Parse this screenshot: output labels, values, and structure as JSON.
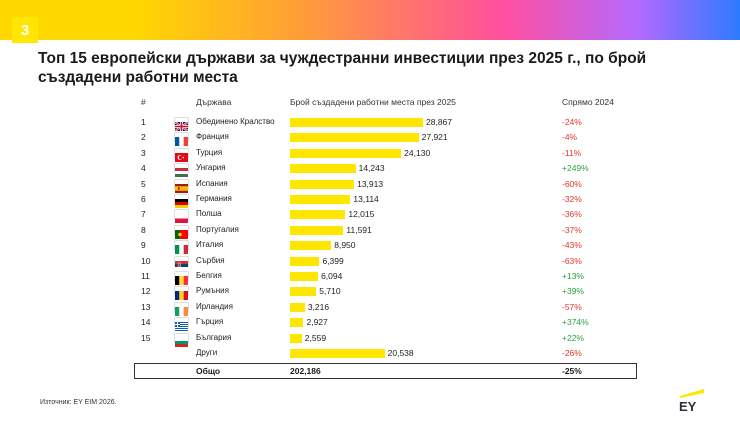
{
  "slide_number": "3",
  "title": "Топ 15 европейски държави за чуждестранни инвестиции през 2025 г., по брой създадени работни места",
  "source": "Източник: EY EIM 2026.",
  "logo_text": "EY",
  "chart_data": {
    "type": "bar",
    "orientation": "horizontal",
    "title": "Топ 15 европейски държави за чуждестранни инвестиции през 2025 г., по брой създадени работни места",
    "columns": {
      "rank": "#",
      "country": "Държава",
      "value": "Брой създадени работни места през 2025",
      "change": "Спрямо 2024"
    },
    "rows": [
      {
        "rank": "1",
        "country": "Обединено Кралство",
        "value": 28867,
        "value_label": "28,867",
        "change": "-24%",
        "flag": "gb"
      },
      {
        "rank": "2",
        "country": "Франция",
        "value": 27921,
        "value_label": "27,921",
        "change": "-4%",
        "flag": "fr"
      },
      {
        "rank": "3",
        "country": "Турция",
        "value": 24130,
        "value_label": "24,130",
        "change": "-11%",
        "flag": "tr"
      },
      {
        "rank": "4",
        "country": "Унгария",
        "value": 14243,
        "value_label": "14,243",
        "change": "+249%",
        "flag": "hu"
      },
      {
        "rank": "5",
        "country": "Испания",
        "value": 13913,
        "value_label": "13,913",
        "change": "-60%",
        "flag": "es"
      },
      {
        "rank": "6",
        "country": "Германия",
        "value": 13114,
        "value_label": "13,114",
        "change": "-32%",
        "flag": "de"
      },
      {
        "rank": "7",
        "country": "Полша",
        "value": 12015,
        "value_label": "12,015",
        "change": "-36%",
        "flag": "pl"
      },
      {
        "rank": "8",
        "country": "Португалия",
        "value": 11591,
        "value_label": "11,591",
        "change": "-37%",
        "flag": "pt"
      },
      {
        "rank": "9",
        "country": "Италия",
        "value": 8950,
        "value_label": "8,950",
        "change": "-43%",
        "flag": "it"
      },
      {
        "rank": "10",
        "country": "Сърбия",
        "value": 6399,
        "value_label": "6,399",
        "change": "-63%",
        "flag": "rs"
      },
      {
        "rank": "11",
        "country": "Белгия",
        "value": 6094,
        "value_label": "6,094",
        "change": "+13%",
        "flag": "be"
      },
      {
        "rank": "12",
        "country": "Румъния",
        "value": 5710,
        "value_label": "5,710",
        "change": "+39%",
        "flag": "ro"
      },
      {
        "rank": "13",
        "country": "Ирландия",
        "value": 3216,
        "value_label": "3,216",
        "change": "-57%",
        "flag": "ie"
      },
      {
        "rank": "14",
        "country": "Гърция",
        "value": 2927,
        "value_label": "2,927",
        "change": "+374%",
        "flag": "gr"
      },
      {
        "rank": "15",
        "country": "България",
        "value": 2559,
        "value_label": "2,559",
        "change": "+22%",
        "flag": "bg"
      },
      {
        "rank": "",
        "country": "Други",
        "value": 20538,
        "value_label": "20,538",
        "change": "-26%",
        "flag": ""
      }
    ],
    "total": {
      "label": "Общо",
      "value": 202186,
      "value_label": "202,186",
      "change": "-25%"
    },
    "bar_color": "#ffe600",
    "negative_color": "#e0362c",
    "positive_color": "#2ea043"
  }
}
